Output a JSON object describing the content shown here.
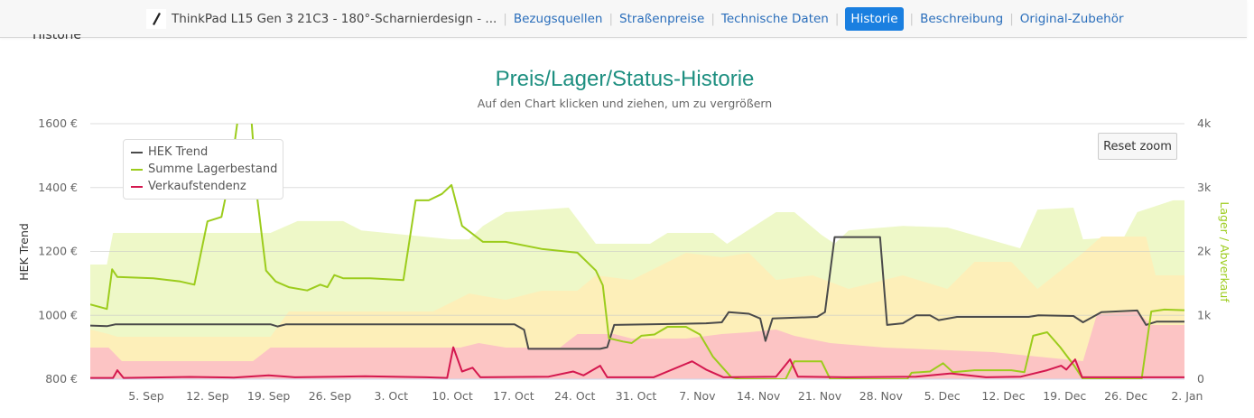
{
  "nav": {
    "product": "ThinkPad L15 Gen 3 21C3 - 180°-Scharnierdesign - ...",
    "links": [
      "Bezugsquellen",
      "Straßenpreise",
      "Technische Daten",
      "Historie",
      "Beschreibung",
      "Original-Zubehör"
    ],
    "active": "Historie"
  },
  "section_heading": "Historie",
  "reset_zoom": "Reset zoom",
  "chart_data": {
    "type": "line",
    "title": "Preis/Lager/Status-Historie",
    "subtitle": "Auf den Chart klicken und ziehen, um zu vergrößern",
    "ylabel": "HEK Trend",
    "ylabel_right": "Lager / Abverkauf",
    "ylim": [
      800,
      1600
    ],
    "ylim_right": [
      0,
      4000
    ],
    "yticks": [
      "1600 €",
      "1400 €",
      "1200 €",
      "1000 €",
      "800 €"
    ],
    "yticks_right": [
      "4k",
      "3k",
      "2k",
      "1k",
      "0"
    ],
    "x_unit": "days since 5. Sep",
    "xlim": [
      -6.4,
      118.7
    ],
    "xticks": [
      "5. Sep",
      "12. Sep",
      "19. Sep",
      "26. Sep",
      "3. Oct",
      "10. Oct",
      "17. Oct",
      "24. Oct",
      "31. Oct",
      "7. Nov",
      "14. Nov",
      "21. Nov",
      "28. Nov",
      "5. Dec",
      "12. Dec",
      "19. Dec",
      "26. Dec",
      "2. Jan"
    ],
    "legend": [
      "HEK Trend",
      "Summe Lagerbestand",
      "Verkaufstendenz"
    ],
    "legend_position": "top-left",
    "colors": {
      "hek": "#4a4a4a",
      "lager": "#9ccc1c",
      "verkauf": "#d4184f",
      "band_green": "#eef8c8",
      "band_yellow": "#fdefb9",
      "band_pink": "#fcc4c4"
    },
    "bands": {
      "green": [
        [
          -6.4,
          1795
        ],
        [
          -4.5,
          1795
        ],
        [
          -3.8,
          2290
        ],
        [
          14.2,
          2290
        ],
        [
          17.3,
          2475
        ],
        [
          22.5,
          2475
        ],
        [
          24.6,
          2330
        ],
        [
          34.9,
          2190
        ],
        [
          36.9,
          2190
        ],
        [
          38.5,
          2400
        ],
        [
          41.1,
          2615
        ],
        [
          48.3,
          2685
        ],
        [
          51.4,
          2120
        ],
        [
          53.5,
          2120
        ],
        [
          57.6,
          2120
        ],
        [
          59.6,
          2290
        ],
        [
          64.8,
          2290
        ],
        [
          66.4,
          2120
        ],
        [
          72,
          2615
        ],
        [
          74.1,
          2615
        ],
        [
          77.2,
          2260
        ],
        [
          78.7,
          2120
        ],
        [
          80.3,
          2330
        ],
        [
          86.5,
          2400
        ],
        [
          91.6,
          2375
        ],
        [
          99.9,
          2050
        ],
        [
          101.9,
          2655
        ],
        [
          106,
          2685
        ],
        [
          107.1,
          2190
        ],
        [
          111.8,
          2230
        ],
        [
          113.3,
          2615
        ],
        [
          117.4,
          2800
        ],
        [
          118.7,
          2800
        ]
      ],
      "yellow": [
        [
          -6.4,
          777
        ],
        [
          -4.3,
          707
        ],
        [
          -3.3,
          664
        ],
        [
          14.2,
          664
        ],
        [
          16.3,
          1060
        ],
        [
          32.8,
          1060
        ],
        [
          36.9,
          1342
        ],
        [
          41.1,
          1243
        ],
        [
          45.2,
          1385
        ],
        [
          49.3,
          1385
        ],
        [
          51.4,
          1625
        ],
        [
          55.5,
          1554
        ],
        [
          61.7,
          1978
        ],
        [
          65.8,
          1908
        ],
        [
          68.9,
          1978
        ],
        [
          72,
          1554
        ],
        [
          76.2,
          1625
        ],
        [
          80.3,
          1413
        ],
        [
          82.4,
          1484
        ],
        [
          86.5,
          1625
        ],
        [
          91.6,
          1413
        ],
        [
          94.7,
          1837
        ],
        [
          98.9,
          1837
        ],
        [
          101.9,
          1413
        ],
        [
          107.1,
          1978
        ],
        [
          109.2,
          2233
        ],
        [
          114.3,
          2233
        ],
        [
          115.4,
          1625
        ],
        [
          118.7,
          1625
        ]
      ],
      "pink": [
        [
          -6.4,
          495
        ],
        [
          -4.3,
          495
        ],
        [
          -2.8,
          283
        ],
        [
          12.2,
          283
        ],
        [
          14.2,
          495
        ],
        [
          35.9,
          495
        ],
        [
          38,
          565
        ],
        [
          41.1,
          495
        ],
        [
          47.3,
          495
        ],
        [
          49.3,
          707
        ],
        [
          53.5,
          707
        ],
        [
          55.5,
          636
        ],
        [
          61.7,
          636
        ],
        [
          65.8,
          707
        ],
        [
          68.9,
          735
        ],
        [
          72,
          777
        ],
        [
          74.1,
          678
        ],
        [
          78.2,
          565
        ],
        [
          84.4,
          495
        ],
        [
          96.8,
          424
        ],
        [
          101.9,
          353
        ],
        [
          107.1,
          283
        ],
        [
          108.7,
          1017
        ],
        [
          113.3,
          1060
        ],
        [
          114.9,
          848
        ],
        [
          118.7,
          848
        ]
      ]
    },
    "series": [
      {
        "name": "HEK Trend",
        "axis": "left",
        "points": [
          [
            -6.4,
            968
          ],
          [
            -4.5,
            966
          ],
          [
            -3.5,
            972
          ],
          [
            14.2,
            972
          ],
          [
            15,
            965
          ],
          [
            16,
            972
          ],
          [
            42.1,
            972
          ],
          [
            43.2,
            955
          ],
          [
            43.7,
            895
          ],
          [
            51.9,
            895
          ],
          [
            52.7,
            900
          ],
          [
            53.5,
            970
          ],
          [
            64,
            975
          ],
          [
            65.8,
            978
          ],
          [
            66.6,
            1010
          ],
          [
            68.9,
            1005
          ],
          [
            70.2,
            990
          ],
          [
            70.8,
            920
          ],
          [
            71.6,
            990
          ],
          [
            76.7,
            995
          ],
          [
            77.6,
            1010
          ],
          [
            78.7,
            1245
          ],
          [
            83.9,
            1245
          ],
          [
            84.7,
            970
          ],
          [
            86.5,
            975
          ],
          [
            88,
            1000
          ],
          [
            89.6,
            1000
          ],
          [
            90.6,
            985
          ],
          [
            92.7,
            995
          ],
          [
            100.9,
            995
          ],
          [
            102,
            1000
          ],
          [
            106,
            998
          ],
          [
            107.1,
            978
          ],
          [
            109.2,
            1010
          ],
          [
            113.3,
            1015
          ],
          [
            114.3,
            970
          ],
          [
            115.5,
            980
          ],
          [
            118.7,
            980
          ]
        ]
      },
      {
        "name": "Summe Lagerbestand",
        "axis": "right",
        "points": [
          [
            -6.4,
            1170
          ],
          [
            -4.5,
            1100
          ],
          [
            -3.9,
            1720
          ],
          [
            -3.3,
            1600
          ],
          [
            0.8,
            1580
          ],
          [
            3.9,
            1530
          ],
          [
            5.5,
            1480
          ],
          [
            7,
            2470
          ],
          [
            8.6,
            2540
          ],
          [
            9.6,
            3200
          ],
          [
            10.5,
            4100
          ],
          [
            12,
            4100
          ],
          [
            12.7,
            2830
          ],
          [
            13.7,
            1700
          ],
          [
            14.8,
            1530
          ],
          [
            16.3,
            1440
          ],
          [
            18.4,
            1390
          ],
          [
            19.9,
            1480
          ],
          [
            20.7,
            1440
          ],
          [
            21.5,
            1630
          ],
          [
            22.5,
            1580
          ],
          [
            25.6,
            1580
          ],
          [
            29.4,
            1550
          ],
          [
            30.8,
            2800
          ],
          [
            32.3,
            2800
          ],
          [
            33.8,
            2900
          ],
          [
            34.9,
            3040
          ],
          [
            36.1,
            2400
          ],
          [
            38.5,
            2150
          ],
          [
            41.1,
            2150
          ],
          [
            45.2,
            2040
          ],
          [
            49.3,
            1980
          ],
          [
            51.4,
            1700
          ],
          [
            52.2,
            1470
          ],
          [
            52.9,
            640
          ],
          [
            54.5,
            590
          ],
          [
            55.5,
            565
          ],
          [
            56.6,
            680
          ],
          [
            58.1,
            700
          ],
          [
            59.6,
            820
          ],
          [
            61.7,
            820
          ],
          [
            63.3,
            700
          ],
          [
            64.8,
            350
          ],
          [
            66.9,
            30
          ],
          [
            67.9,
            0
          ],
          [
            73.1,
            0
          ],
          [
            74.1,
            280
          ],
          [
            77.2,
            280
          ],
          [
            78.2,
            0
          ],
          [
            87,
            0
          ],
          [
            87.5,
            100
          ],
          [
            89.6,
            120
          ],
          [
            91.1,
            250
          ],
          [
            92.2,
            110
          ],
          [
            94.7,
            140
          ],
          [
            98.9,
            140
          ],
          [
            100.4,
            110
          ],
          [
            101.4,
            680
          ],
          [
            103,
            735
          ],
          [
            104.5,
            500
          ],
          [
            106.1,
            210
          ],
          [
            107.1,
            0
          ],
          [
            113.8,
            0
          ],
          [
            114.9,
            1060
          ],
          [
            116.4,
            1090
          ],
          [
            118.7,
            1080
          ]
        ]
      },
      {
        "name": "Verkaufstendenz",
        "axis": "right",
        "points": [
          [
            -6.4,
            20
          ],
          [
            -3.8,
            20
          ],
          [
            -3.3,
            140
          ],
          [
            -2.6,
            20
          ],
          [
            5,
            35
          ],
          [
            10,
            25
          ],
          [
            14,
            60
          ],
          [
            17,
            30
          ],
          [
            25,
            45
          ],
          [
            32,
            30
          ],
          [
            34.4,
            20
          ],
          [
            35.1,
            500
          ],
          [
            36.1,
            120
          ],
          [
            37.3,
            180
          ],
          [
            38.2,
            30
          ],
          [
            46,
            40
          ],
          [
            48.8,
            120
          ],
          [
            50,
            60
          ],
          [
            51.9,
            210
          ],
          [
            52.7,
            30
          ],
          [
            58,
            30
          ],
          [
            62.4,
            280
          ],
          [
            64,
            150
          ],
          [
            66,
            30
          ],
          [
            72,
            40
          ],
          [
            73.6,
            310
          ],
          [
            74.5,
            40
          ],
          [
            80,
            30
          ],
          [
            88,
            40
          ],
          [
            92,
            90
          ],
          [
            96,
            30
          ],
          [
            100,
            40
          ],
          [
            103,
            140
          ],
          [
            104.6,
            210
          ],
          [
            105.2,
            150
          ],
          [
            106.2,
            310
          ],
          [
            107,
            30
          ],
          [
            118.7,
            30
          ]
        ]
      }
    ]
  }
}
